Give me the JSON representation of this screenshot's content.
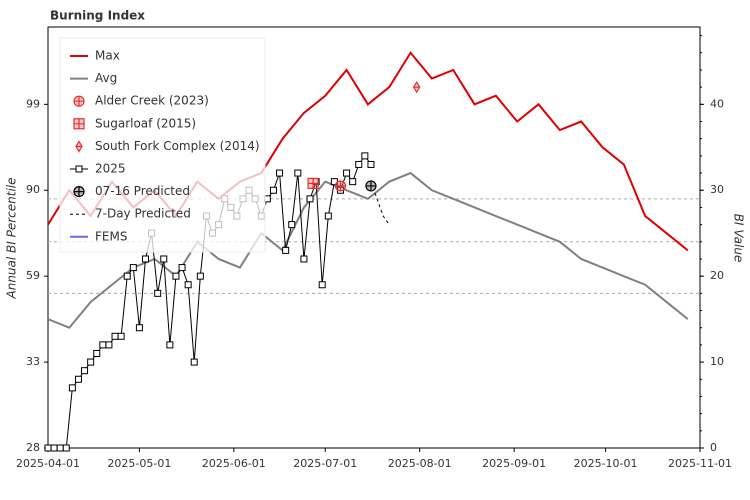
{
  "chart_data": {
    "type": "line",
    "title": "Burning Index",
    "ylabel": "Annual BI Percentile",
    "y2label": "BI Value",
    "xlim": [
      0,
      214
    ],
    "xticks": [
      {
        "value": 0,
        "label": "2025-04-01"
      },
      {
        "value": 30,
        "label": "2025-05-01"
      },
      {
        "value": 61,
        "label": "2025-06-01"
      },
      {
        "value": 91,
        "label": "2025-07-01"
      },
      {
        "value": 122,
        "label": "2025-08-01"
      },
      {
        "value": 153,
        "label": "2025-09-01"
      },
      {
        "value": 183,
        "label": "2025-10-01"
      },
      {
        "value": 214,
        "label": "2025-11-01"
      }
    ],
    "ylim": [
      0,
      49
    ],
    "yticks": [
      0,
      10,
      20,
      30,
      40
    ],
    "percentile_ticks": [
      {
        "value": 0,
        "label": "28"
      },
      {
        "value": 10,
        "label": "33"
      },
      {
        "value": 20,
        "label": "59"
      },
      {
        "value": 30,
        "label": "90"
      },
      {
        "value": 40,
        "label": "99"
      }
    ],
    "reference_lines": [
      29,
      24,
      18
    ],
    "series": [
      {
        "name": "Max",
        "color": "#e00000",
        "style": "line",
        "x": [
          0,
          7,
          14,
          21,
          28,
          35,
          42,
          49,
          56,
          63,
          70,
          77,
          84,
          91,
          98,
          105,
          112,
          119,
          126,
          133,
          140,
          147,
          154,
          161,
          168,
          175,
          182,
          189,
          196,
          203,
          210
        ],
        "values": [
          26,
          30,
          27,
          31,
          28,
          30,
          27,
          31,
          29,
          31,
          32,
          36,
          39,
          41,
          44,
          40,
          42,
          46,
          43,
          44,
          40,
          41,
          38,
          40,
          37,
          38,
          35,
          33,
          27,
          25,
          23
        ]
      },
      {
        "name": "Avg",
        "color": "#808080",
        "style": "line",
        "x": [
          0,
          7,
          14,
          21,
          28,
          35,
          42,
          49,
          56,
          63,
          70,
          77,
          84,
          91,
          98,
          105,
          112,
          119,
          126,
          133,
          140,
          147,
          154,
          161,
          168,
          175,
          182,
          189,
          196,
          203,
          210
        ],
        "values": [
          15,
          14,
          17,
          19,
          21,
          22,
          20,
          24,
          22,
          21,
          25,
          23,
          28,
          31,
          30,
          29,
          31,
          32,
          30,
          29,
          28,
          27,
          26,
          25,
          24,
          22,
          21,
          20,
          19,
          17,
          15
        ]
      },
      {
        "name": "2025",
        "color": "#000000",
        "style": "squares",
        "x": [
          0,
          2,
          4,
          6,
          8,
          10,
          12,
          14,
          16,
          18,
          20,
          22,
          24,
          26,
          28,
          30,
          32,
          34,
          36,
          38,
          40,
          42,
          44,
          46,
          48,
          50,
          52,
          54,
          56,
          58,
          60,
          62,
          64,
          66,
          68,
          70,
          72,
          74,
          76,
          78,
          80,
          82,
          84,
          86,
          88,
          90,
          92,
          94,
          96,
          98,
          100,
          102,
          104,
          106
        ],
        "values": [
          0,
          0,
          0,
          0,
          7,
          8,
          9,
          10,
          11,
          12,
          12,
          13,
          13,
          20,
          21,
          14,
          22,
          25,
          18,
          22,
          12,
          20,
          21,
          19,
          10,
          20,
          27,
          25,
          26,
          29,
          28,
          27,
          29,
          30,
          29,
          27,
          29,
          30,
          32,
          23,
          26,
          32,
          22,
          29,
          31,
          19,
          27,
          31,
          30,
          32,
          31,
          33,
          34,
          33
        ]
      },
      {
        "name": "7-Day Predicted",
        "color": "#000000",
        "style": "dashed",
        "x": [
          106,
          108,
          110,
          112
        ],
        "values": [
          31,
          29,
          27,
          26
        ]
      },
      {
        "name": "FEMS",
        "color": "#6a6af0",
        "style": "line",
        "x": [],
        "values": []
      }
    ],
    "events": [
      {
        "name": "Alder Creek (2023)",
        "color": "#e03030",
        "symbol": "circle-cross",
        "x": 96,
        "value": 30.5
      },
      {
        "name": "Sugarloaf (2015)",
        "color": "#e03030",
        "symbol": "square-cross",
        "x": 87,
        "value": 30.8
      },
      {
        "name": "South Fork Complex (2014)",
        "color": "#e03030",
        "symbol": "diamond",
        "x": 121,
        "value": 42
      },
      {
        "name": "07-16 Predicted",
        "color": "#000000",
        "symbol": "circle-cross",
        "x": 106,
        "value": 30.5
      }
    ],
    "legend_order": [
      "Max",
      "Avg",
      "Alder Creek (2023)",
      "Sugarloaf (2015)",
      "South Fork Complex (2014)",
      "2025",
      "07-16 Predicted",
      "7-Day Predicted",
      "FEMS"
    ]
  }
}
